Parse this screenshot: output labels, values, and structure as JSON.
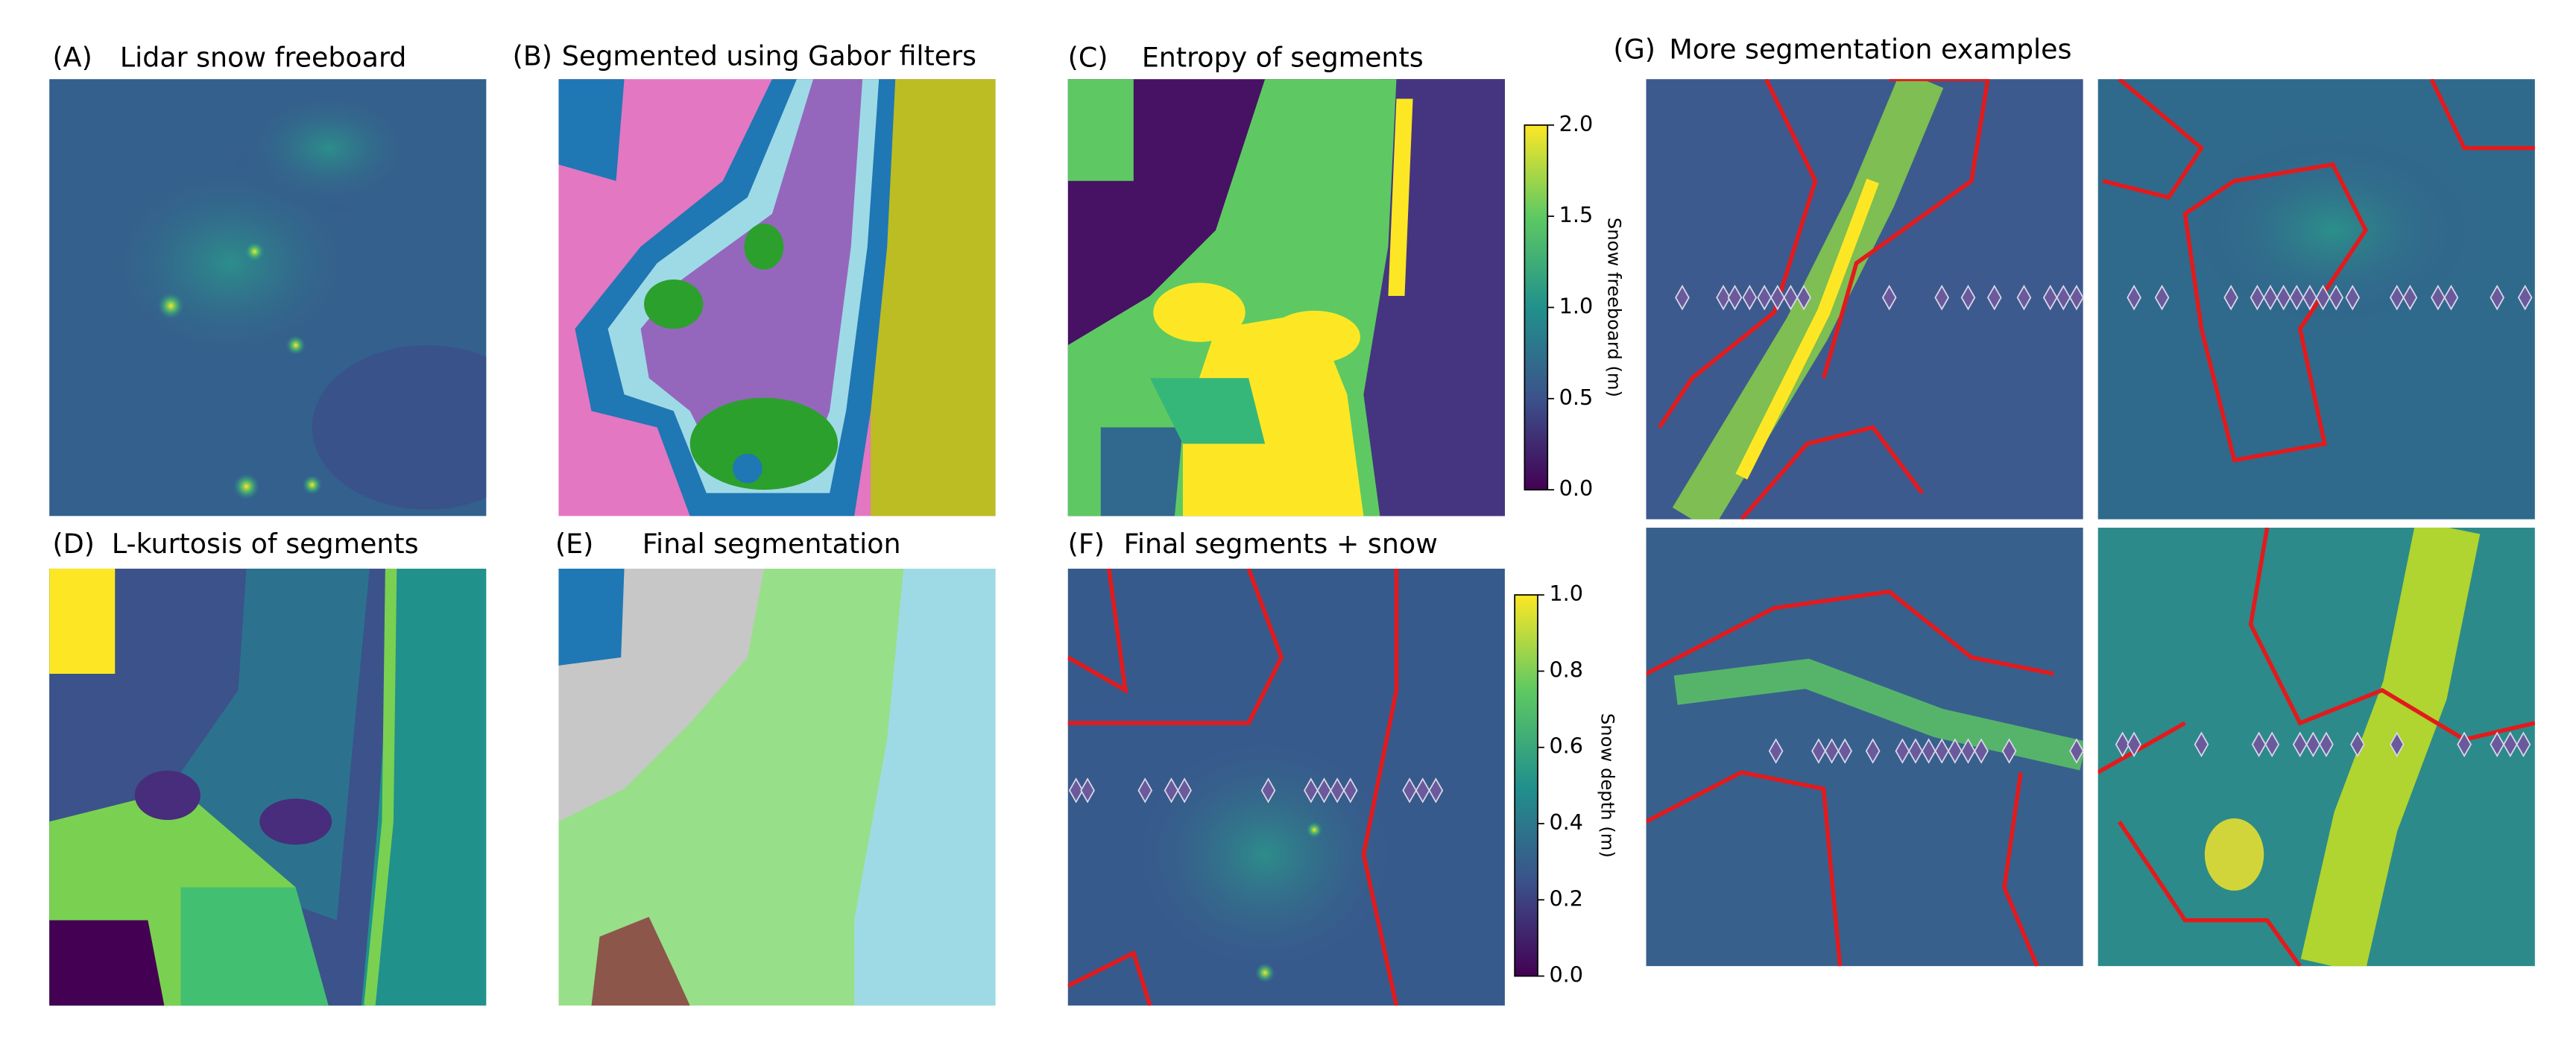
{
  "panels": [
    {
      "label": "(A)",
      "title": "Lidar snow freeboard"
    },
    {
      "label": "(B)",
      "title": "Segmented using Gabor filters"
    },
    {
      "label": "(C)",
      "title": "Entropy of segments"
    },
    {
      "label": "(D)",
      "title": "L-kurtosis of segments"
    },
    {
      "label": "(E)",
      "title": "Final segmentation"
    },
    {
      "label": "(F)",
      "title": "Final segments + snow"
    },
    {
      "label": "(G)",
      "title": "More segmentation examples"
    }
  ],
  "colorbars": [
    {
      "label": "Snow freeboard (m)",
      "lim": [
        0,
        2
      ],
      "ticks": [
        {
          "value": 0,
          "label": "0.0"
        },
        {
          "value": 0.5,
          "label": "0.5"
        },
        {
          "value": 1,
          "label": "1.0"
        },
        {
          "value": 1.5,
          "label": "1.5"
        },
        {
          "value": 2,
          "label": "2.0"
        }
      ]
    },
    {
      "label": "Snow depth (m)",
      "lim": [
        0,
        1
      ],
      "ticks": [
        {
          "value": 0,
          "label": "0.0"
        },
        {
          "value": 0.2,
          "label": "0.2"
        },
        {
          "value": 0.4,
          "label": "0.4"
        },
        {
          "value": 0.6,
          "label": "0.6"
        },
        {
          "value": 0.8,
          "label": "0.8"
        },
        {
          "value": 1,
          "label": "1.0"
        }
      ]
    }
  ]
}
